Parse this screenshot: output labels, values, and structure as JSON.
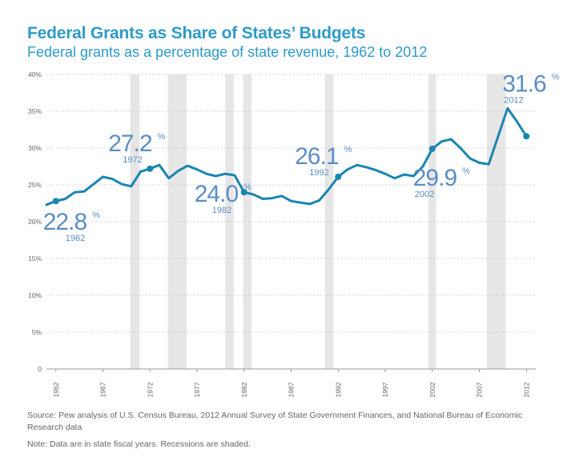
{
  "chart_data": {
    "type": "line",
    "title": "Federal Grants as Share of States’ Budgets",
    "subtitle": "Federal grants as a percentage of state revenue, 1962 to 2012",
    "xlabel": "",
    "ylabel": "",
    "xlim": [
      1961,
      2013
    ],
    "ylim": [
      0,
      40
    ],
    "y_ticks": [
      "0",
      "5%",
      "10%",
      "15%",
      "20%",
      "25%",
      "30%",
      "35%",
      "40%"
    ],
    "y_tick_values": [
      0,
      5,
      10,
      15,
      20,
      25,
      30,
      35,
      40
    ],
    "x_ticks": [
      "1962",
      "1967",
      "1972",
      "1977",
      "1982",
      "1987",
      "1992",
      "1997",
      "2002",
      "2007",
      "2012"
    ],
    "x_tick_values": [
      1962,
      1967,
      1972,
      1977,
      1982,
      1987,
      1992,
      1997,
      2002,
      2007,
      2012
    ],
    "grid": "horizontal dotted",
    "line_color": "#1a85b0",
    "recession_color": "#e6e6e6",
    "annotation_color": "#5b8dc4",
    "recessions": [
      [
        1969.9,
        1970.9
      ],
      [
        1973.9,
        1975.9
      ],
      [
        1980.0,
        1980.9
      ],
      [
        1981.9,
        1982.8
      ],
      [
        1990.6,
        1991.5
      ],
      [
        2001.6,
        2002.4
      ],
      [
        2007.8,
        2009.8
      ]
    ],
    "x": [
      1961,
      1962,
      1963,
      1964,
      1965,
      1966,
      1967,
      1968,
      1969,
      1970,
      1971,
      1972,
      1973,
      1974,
      1975,
      1976,
      1977,
      1978,
      1979,
      1980,
      1981,
      1982,
      1983,
      1984,
      1985,
      1986,
      1987,
      1988,
      1989,
      1990,
      1991,
      1992,
      1993,
      1994,
      1995,
      1996,
      1997,
      1998,
      1999,
      2000,
      2001,
      2002,
      2003,
      2004,
      2005,
      2006,
      2007,
      2008,
      2009,
      2010,
      2011,
      2012
    ],
    "series": [
      {
        "values": [
          22.3,
          22.8,
          23.1,
          24.0,
          24.1,
          25.1,
          26.1,
          25.8,
          25.1,
          24.8,
          26.8,
          27.2,
          27.7,
          25.9,
          26.9,
          27.6,
          27.1,
          26.5,
          26.2,
          26.5,
          26.3,
          24.0,
          23.7,
          23.1,
          23.2,
          23.5,
          22.8,
          22.6,
          22.4,
          22.9,
          24.4,
          26.1,
          27.1,
          27.7,
          27.4,
          27.0,
          26.5,
          25.9,
          26.4,
          26.2,
          27.5,
          29.9,
          30.9,
          31.2,
          30.0,
          28.6,
          28.0,
          27.8,
          31.6,
          35.4,
          33.6,
          31.6
        ]
      }
    ],
    "highlights": [
      {
        "x": 1962,
        "y": 22.8,
        "value": "22.8",
        "pct": "%",
        "year": "1962"
      },
      {
        "x": 1972,
        "y": 27.2,
        "value": "27.2",
        "pct": "%",
        "year": "1972"
      },
      {
        "x": 1982,
        "y": 24.0,
        "value": "24.0",
        "pct": "%",
        "year": "1982"
      },
      {
        "x": 1992,
        "y": 26.1,
        "value": "26.1",
        "pct": "%",
        "year": "1992"
      },
      {
        "x": 2002,
        "y": 29.9,
        "value": "29.9",
        "pct": "%",
        "year": "2002"
      },
      {
        "x": 2012,
        "y": 31.6,
        "value": "31.6",
        "pct": "%",
        "year": "2012"
      }
    ]
  },
  "source": "Source: Pew analysis of U.S. Census Bureau, 2012 Annual Survey of State Government Finances, and National Bureau of Economic Research data",
  "note": "Note: Data are in state fiscal years. Recessions are shaded."
}
